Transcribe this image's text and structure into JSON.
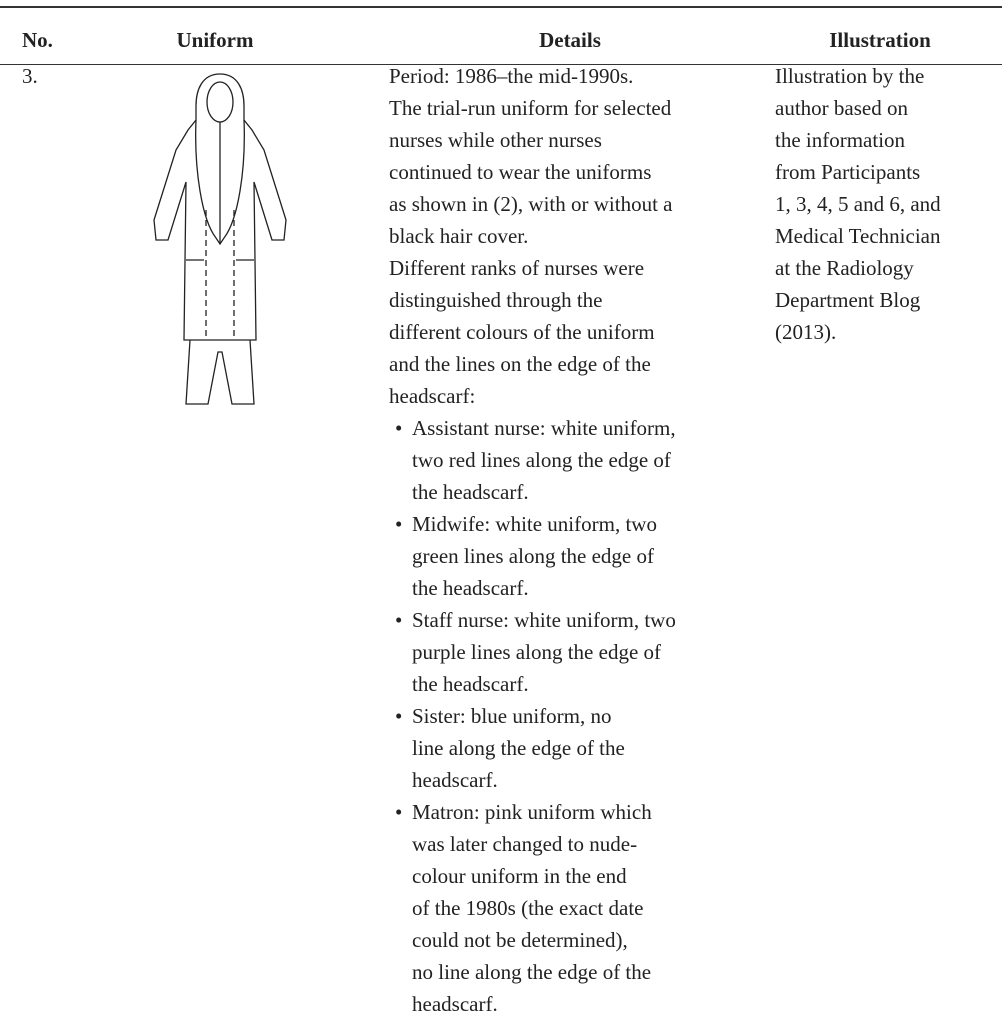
{
  "table": {
    "header": [
      "No.",
      "Uniform",
      "Details",
      "Illustration"
    ],
    "rows": [
      {
        "no": "3.",
        "details": {
          "paragraphs": [
            [
              "Period: 1986–the mid-1990s."
            ],
            [
              "The trial-run uniform for selected",
              "nurses while other nurses",
              "continued to wear the uniforms",
              "as shown in (2), with or without a",
              "black hair cover."
            ],
            [
              "Different ranks of nurses were",
              "distinguished through the",
              "different colours of the uniform",
              "and the lines on the edge of the",
              "headscarf:"
            ]
          ],
          "bullets": [
            [
              "Assistant nurse: white uniform,",
              "two red lines along the edge of",
              "the headscarf."
            ],
            [
              "Midwife: white uniform, two",
              "green lines along the edge of",
              "the headscarf."
            ],
            [
              "Staff nurse: white uniform, two",
              "purple lines along the edge of",
              "the headscarf."
            ],
            [
              "Sister: blue uniform, no",
              "line along the edge of the",
              "headscarf."
            ],
            [
              "Matron: pink uniform which",
              "was later changed to nude-",
              "colour uniform in the end",
              "of the 1980s (the exact date",
              "could not be determined),",
              "no line along the edge of the",
              "headscarf."
            ]
          ]
        },
        "illustration": [
          "Illustration by the",
          "author based on",
          "the information",
          "from Participants",
          "1, 3, 4, 5 and 6, and",
          "Medical Technician",
          "at the Radiology",
          "Department Blog",
          "(2013)."
        ]
      }
    ]
  }
}
